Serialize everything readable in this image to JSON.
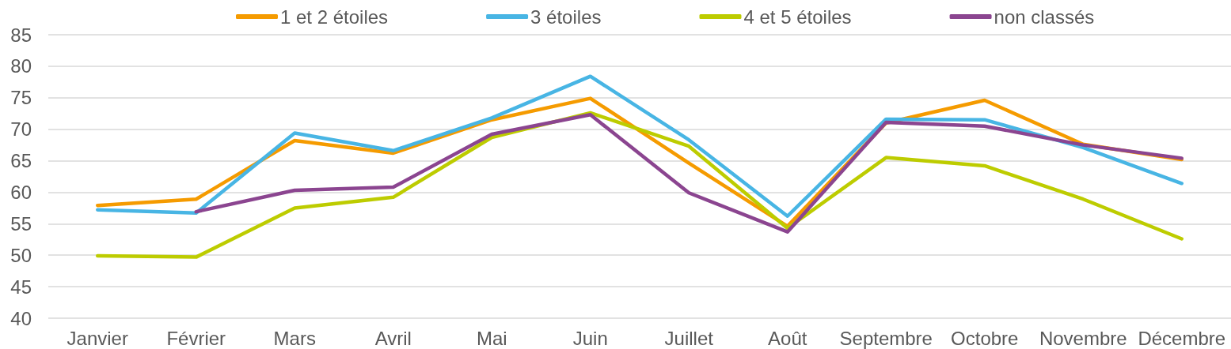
{
  "chart_data": {
    "type": "line",
    "categories": [
      "Janvier",
      "Février",
      "Mars",
      "Avril",
      "Mai",
      "Juin",
      "Juillet",
      "Août",
      "Septembre",
      "Octobre",
      "Novembre",
      "Décembre"
    ],
    "series": [
      {
        "name": "1 et 2 étoiles",
        "color": "#f59b00",
        "values": [
          57.9,
          58.9,
          68.2,
          66.2,
          71.5,
          74.9,
          64.6,
          54.6,
          71.0,
          74.6,
          67.6,
          65.2
        ]
      },
      {
        "name": "3 étoiles",
        "color": "#48b5e4",
        "values": [
          57.2,
          56.7,
          69.4,
          66.6,
          71.8,
          78.4,
          68.3,
          56.2,
          71.6,
          71.5,
          67.1,
          61.4
        ]
      },
      {
        "name": "4 et 5 étoiles",
        "color": "#bdcc00",
        "values": [
          49.9,
          49.7,
          57.5,
          59.2,
          68.7,
          72.6,
          67.3,
          54.3,
          65.5,
          64.2,
          58.9,
          52.6
        ]
      },
      {
        "name": "non classés",
        "color": "#8b4590",
        "values": [
          null,
          56.9,
          60.3,
          60.8,
          69.2,
          72.3,
          59.9,
          53.7,
          71.1,
          70.5,
          67.5,
          65.4
        ]
      }
    ],
    "ylim": [
      40,
      85
    ],
    "yticks": [
      40,
      45,
      50,
      55,
      60,
      65,
      70,
      75,
      80,
      85
    ],
    "grid": "y",
    "legend": "top",
    "marker": "none",
    "line_style": "solid"
  }
}
